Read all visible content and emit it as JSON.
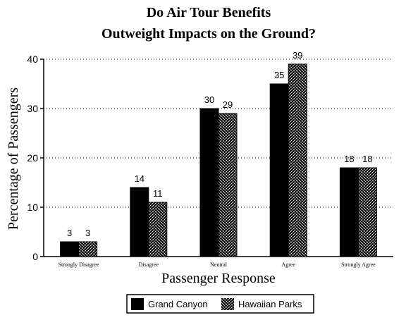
{
  "chart_data": {
    "type": "bar",
    "title_line1": "Do Air Tour Benefits",
    "title_line2": "Outweight Impacts on the Ground?",
    "xlabel": "Passenger Response",
    "ylabel": "Percentage of Passengers",
    "categories": [
      "Strongly Disagree",
      "Disagree",
      "Neutral",
      "Agree",
      "Strongly Agree"
    ],
    "series": [
      {
        "name": "Grand Canyon",
        "values": [
          3,
          14,
          30,
          35,
          18
        ],
        "color": "#000000",
        "pattern": "solid"
      },
      {
        "name": "Hawaiian Parks",
        "values": [
          3,
          11,
          29,
          39,
          18
        ],
        "color": "#2a2a2a",
        "pattern": "stipple"
      }
    ],
    "ylim": [
      0,
      40
    ],
    "yticks": [
      0,
      10,
      20,
      30,
      40
    ],
    "grid": "dotted-horizontal",
    "legend_position": "bottom-right"
  }
}
